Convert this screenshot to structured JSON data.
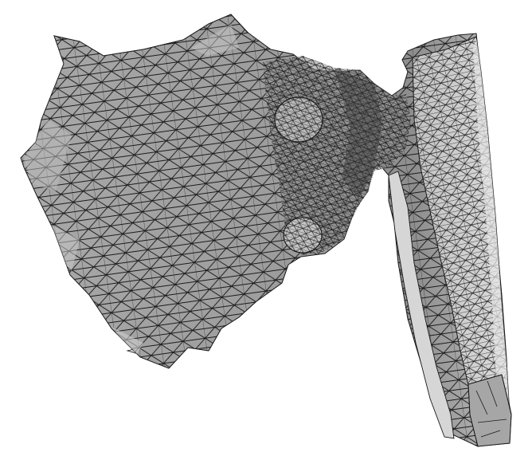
{
  "figure": {
    "kind": "triangulated surface mesh render",
    "colors": {
      "background": "#ffffff",
      "edge": "#1a1a1a",
      "shade_dark": "#9a9a9a",
      "shade_mid": "#b4b4b4",
      "shade_light": "#d2d2d2",
      "shade_highlight": "#e8e8e8"
    }
  }
}
